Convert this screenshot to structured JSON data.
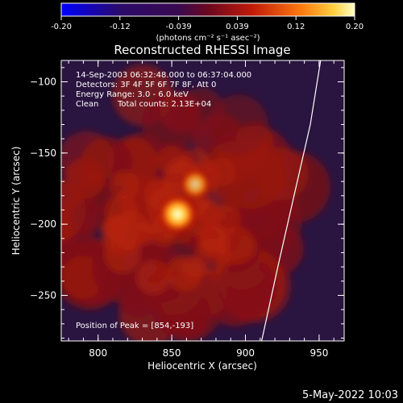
{
  "colorbar": {
    "ticks": [
      "-0.20",
      "-0.12",
      "-0.039",
      "0.039",
      "0.12",
      "0.20"
    ],
    "units": "(photons cm⁻² s⁻¹ asec⁻²)",
    "range": [
      -0.2,
      0.2
    ]
  },
  "title": "Reconstructed RHESSI Image",
  "info": {
    "time": "14-Sep-2003 06:32:48.000 to 06:37:04.000",
    "detectors": "Detectors: 3F 4F 5F 6F 7F 8F, Att 0",
    "energy": "Energy Range: 3.0 - 6.0 keV",
    "clean": "Clean",
    "counts": "Total counts: 2.13E+04",
    "peak": "Position of Peak = [854,-193]"
  },
  "axes": {
    "xlabel": "Heliocentric X (arcsec)",
    "ylabel": "Heliocentric Y (arcsec)",
    "xticks": [
      {
        "v": 800,
        "label": "800"
      },
      {
        "v": 850,
        "label": "850"
      },
      {
        "v": 900,
        "label": "900"
      },
      {
        "v": 950,
        "label": "950"
      }
    ],
    "yticks": [
      {
        "v": -100,
        "label": "−100"
      },
      {
        "v": -150,
        "label": "−150"
      },
      {
        "v": -200,
        "label": "−200"
      },
      {
        "v": -250,
        "label": "−250"
      }
    ],
    "xlim": [
      775,
      967
    ],
    "ylim": [
      -282,
      -85
    ]
  },
  "sources": [
    {
      "x": 854,
      "y": -193,
      "strength": 1.0
    },
    {
      "x": 866,
      "y": -172,
      "strength": 0.55
    }
  ],
  "limb": [
    [
      951,
      -85
    ],
    [
      944,
      -130
    ],
    [
      933,
      -180
    ],
    [
      922,
      -230
    ],
    [
      911,
      -282
    ]
  ],
  "footer": "5-May-2022 10:03"
}
